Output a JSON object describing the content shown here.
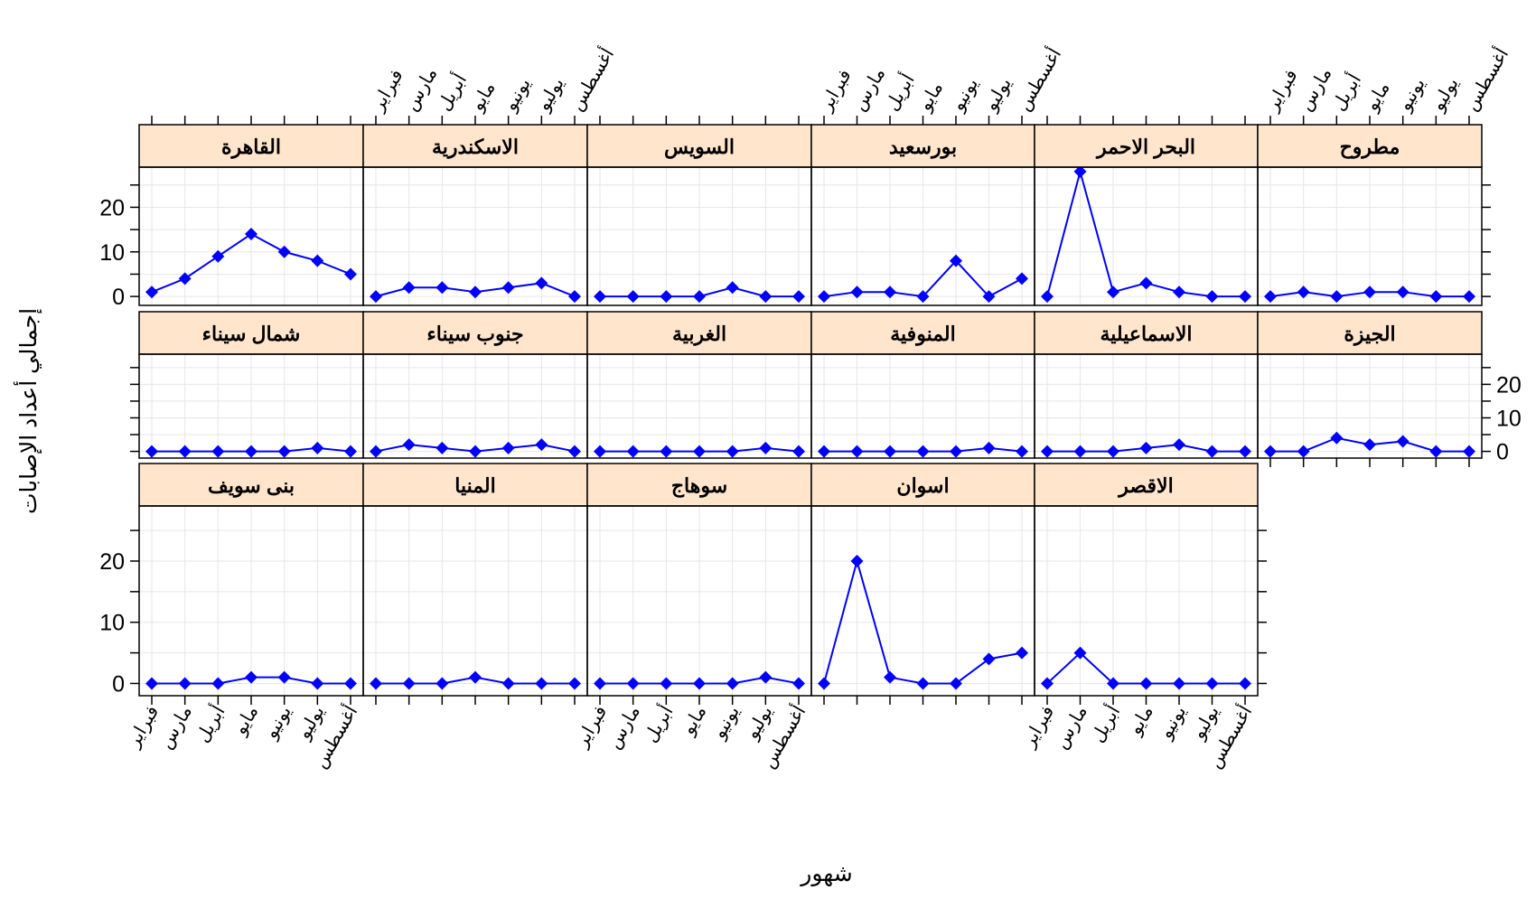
{
  "chart_data": {
    "type": "line",
    "xlabel": "شهور",
    "ylabel": "إجمالي أعداد الإصابات",
    "categories": [
      "فبراير",
      "مارس",
      "أبريل",
      "مايو",
      "يونيو",
      "يوليو",
      "أغسطس"
    ],
    "y_ticks": [
      0,
      10,
      20
    ],
    "ylim": [
      -2,
      29
    ],
    "grid": true,
    "colors": {
      "line": "#0000ff",
      "strip": "#ffe5cc",
      "grid": "#e6e6e6",
      "frame": "#000000"
    },
    "panels": [
      {
        "name": "القاهرة",
        "values": [
          1,
          4,
          9,
          14,
          10,
          8,
          5
        ]
      },
      {
        "name": "الاسكندرية",
        "values": [
          0,
          2,
          2,
          1,
          2,
          3,
          0
        ]
      },
      {
        "name": "السويس",
        "values": [
          0,
          0,
          0,
          0,
          2,
          0,
          0
        ]
      },
      {
        "name": "بورسعيد",
        "values": [
          0,
          1,
          1,
          0,
          8,
          0,
          4
        ]
      },
      {
        "name": "البحر الاحمر",
        "values": [
          0,
          28,
          1,
          3,
          1,
          0,
          0
        ]
      },
      {
        "name": "مطروح",
        "values": [
          0,
          1,
          0,
          1,
          1,
          0,
          0
        ]
      },
      {
        "name": "شمال سيناء",
        "values": [
          0,
          0,
          0,
          0,
          0,
          1,
          0
        ]
      },
      {
        "name": "جنوب سيناء",
        "values": [
          0,
          2,
          1,
          0,
          1,
          2,
          0
        ]
      },
      {
        "name": "الغربية",
        "values": [
          0,
          0,
          0,
          0,
          0,
          1,
          0
        ]
      },
      {
        "name": "المنوفية",
        "values": [
          0,
          0,
          0,
          0,
          0,
          1,
          0
        ]
      },
      {
        "name": "الاسماعيلية",
        "values": [
          0,
          0,
          0,
          1,
          2,
          0,
          0
        ]
      },
      {
        "name": "الجيزة",
        "values": [
          0,
          0,
          4,
          2,
          3,
          0,
          0
        ]
      },
      {
        "name": "بنى سويف",
        "values": [
          0,
          0,
          0,
          1,
          1,
          0,
          0
        ]
      },
      {
        "name": "المنيا",
        "values": [
          0,
          0,
          0,
          1,
          0,
          0,
          0
        ]
      },
      {
        "name": "سوهاج",
        "values": [
          0,
          0,
          0,
          0,
          0,
          1,
          0
        ]
      },
      {
        "name": "اسوان",
        "values": [
          0,
          20,
          1,
          0,
          0,
          4,
          5
        ]
      },
      {
        "name": "الاقصر",
        "values": [
          0,
          5,
          0,
          0,
          0,
          0,
          0
        ]
      }
    ]
  }
}
